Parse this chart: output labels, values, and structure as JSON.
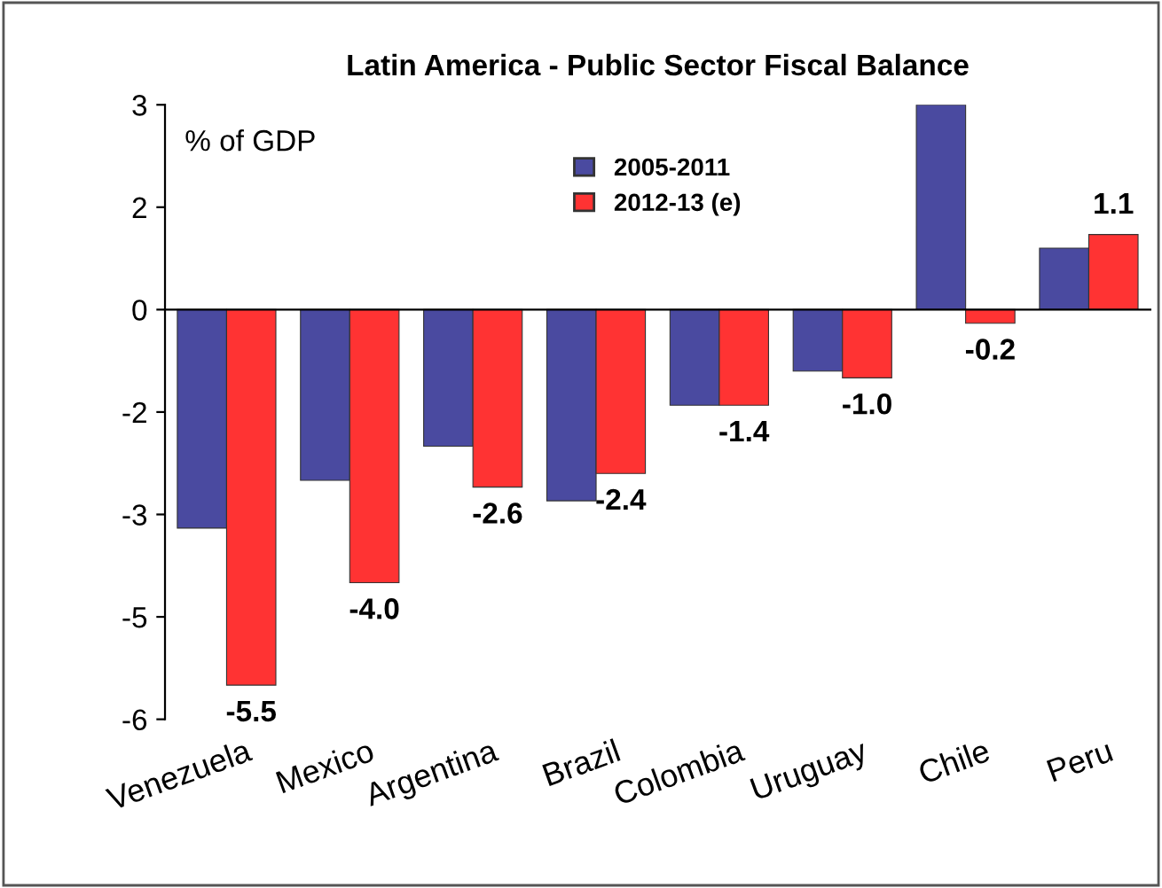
{
  "chart_data": {
    "type": "bar",
    "title": "Latin America - Public Sector Fiscal Balance",
    "annotations": [
      "% of GDP"
    ],
    "categories": [
      "Venezuela",
      "Mexico",
      "Argentina",
      "Brazil",
      "Colombia",
      "Uruguay",
      "Chile",
      "Peru"
    ],
    "series": [
      {
        "name": "2005-2011",
        "color": "#4a4aa0",
        "values": [
          -3.2,
          -2.5,
          -2.0,
          -2.8,
          -1.4,
          -0.9,
          3.0,
          0.9
        ]
      },
      {
        "name": "2012-13 (e)",
        "color": "#ff3333",
        "values": [
          -5.5,
          -4.0,
          -2.6,
          -2.4,
          -1.4,
          -1.0,
          -0.2,
          1.1
        ],
        "value_labels": [
          "-5.5",
          "-4.0",
          "-2.6",
          "-2.4",
          "-1.4",
          "-1.0",
          "-0.2",
          "1.1"
        ]
      }
    ],
    "ylim": [
      -6,
      3
    ],
    "yticks": [
      3,
      {
        "value": 1.5,
        "label": "2"
      },
      0,
      {
        "value": -1.5,
        "label": "-2"
      },
      -3,
      {
        "value": -4.5,
        "label": "-5"
      },
      -6
    ],
    "legend": "top"
  }
}
